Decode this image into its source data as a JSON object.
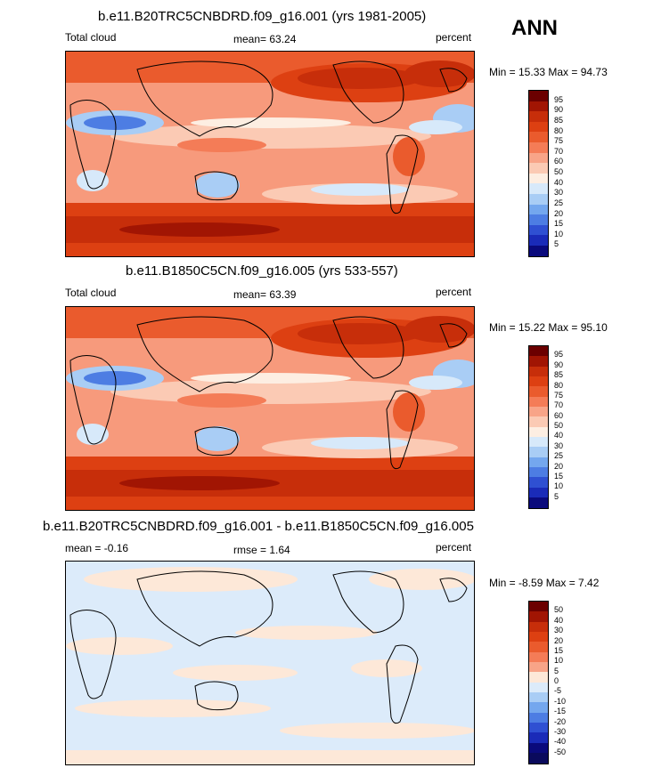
{
  "season": "ANN",
  "units": "percent",
  "panels": [
    {
      "title": "b.e11.B20TRC5CNBDRD.f09_g16.001 (yrs 1981-2005)",
      "left_label": "Total cloud",
      "center_label": "mean=  63.24",
      "right_label": "percent",
      "minmax": "Min =  15.33 Max =  94.73",
      "kind": "abs"
    },
    {
      "title": "b.e11.B1850C5CN.f09_g16.005 (yrs 533-557)",
      "left_label": "Total cloud",
      "center_label": "mean=  63.39",
      "right_label": "percent",
      "minmax": "Min =  15.22 Max =  95.10",
      "kind": "abs"
    },
    {
      "title": "b.e11.B20TRC5CNBDRD.f09_g16.001 - b.e11.B1850C5CN.f09_g16.005",
      "left_label": "mean =  -0.16",
      "center_label": "rmse =   1.64",
      "right_label": "percent",
      "minmax": "Min =  -8.59 Max =   7.42",
      "kind": "diff"
    }
  ],
  "colorbars": {
    "abs": {
      "labels": [
        "95",
        "90",
        "85",
        "80",
        "75",
        "70",
        "60",
        "50",
        "40",
        "30",
        "25",
        "20",
        "15",
        "10",
        "5"
      ],
      "colors": [
        "#6b0000",
        "#a11503",
        "#c72e0a",
        "#dd4012",
        "#ea5b2d",
        "#f47c57",
        "#f8a488",
        "#fbcab4",
        "#fdeee2",
        "#d7e9fa",
        "#a9cdf5",
        "#74a7ee",
        "#4d7de3",
        "#2f50d2",
        "#1a2bb8",
        "#0a0a7c"
      ]
    },
    "diff": {
      "labels": [
        "50",
        "40",
        "30",
        "20",
        "15",
        "10",
        "5",
        "0",
        "-5",
        "-10",
        "-15",
        "-20",
        "-30",
        "-40",
        "-50"
      ],
      "colors": [
        "#6b0000",
        "#a11503",
        "#c72e0a",
        "#dd4012",
        "#ea5b2d",
        "#f47c57",
        "#f8a488",
        "#fde8d8",
        "#dcebfa",
        "#a9cdf5",
        "#74a7ee",
        "#4d7de3",
        "#2f50d2",
        "#1a2bb8",
        "#0a0a7c",
        "#0a0a5c"
      ]
    }
  }
}
